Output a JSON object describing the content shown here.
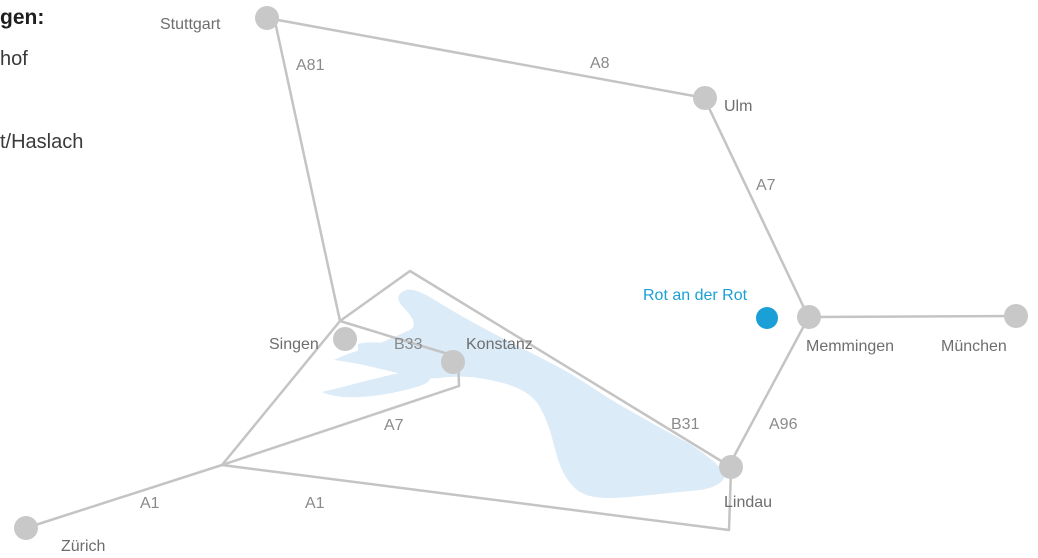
{
  "info": {
    "heading": "gen:",
    "line1": "hof",
    "line2": "t/Haslach"
  },
  "colors": {
    "road": "#c4c4c4",
    "city_dot": "#c8c8c8",
    "lake": "#dbebf8",
    "highlight": "#1aa0d6",
    "label": "#6e6e6e"
  },
  "cities": {
    "stuttgart": "Stuttgart",
    "ulm": "Ulm",
    "memmingen": "Memmingen",
    "muenchen": "München",
    "singen": "Singen",
    "konstanz": "Konstanz",
    "lindau": "Lindau",
    "zuerich": "Zürich",
    "rot": "Rot an der Rot"
  },
  "roads": {
    "a81": "A81",
    "a8": "A8",
    "a7_north": "A7",
    "a7_south": "A7",
    "b33": "B33",
    "b31": "B31",
    "a96": "A96",
    "a1_west": "A1",
    "a1_east": "A1"
  }
}
